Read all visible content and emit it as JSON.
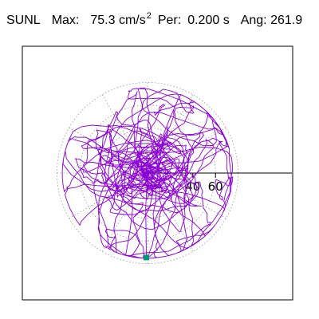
{
  "header": {
    "station": "SUNL",
    "max_label": "Max:",
    "max_value": "75.3",
    "max_unit": "cm/s",
    "max_unit_exp": "2",
    "period_label": "Per:",
    "period_value": "0.200",
    "period_unit": "s",
    "angle_label": "Ang:",
    "angle_value": "261.9"
  },
  "colors": {
    "trace": "#8a00d4",
    "marker": "#009977",
    "grid": "#999999",
    "axis": "#000000"
  },
  "chart_data": {
    "type": "line",
    "title": "SUNL  Max: 75.3 cm/s2  Per: 0.200 s  Ang: 261.9",
    "xlabel": "",
    "ylabel": "",
    "radial_ticks": [
      40,
      60
    ],
    "radial_rings": [
      20,
      40,
      60,
      80
    ],
    "grid": true,
    "grid_style": "dotted polar rings and spokes every 30 degrees",
    "max_amplitude": 75.3,
    "peak_angle_deg": 261.9,
    "series": [
      {
        "type": "orbit",
        "description_points": [
          [
            0,
            0
          ],
          [
            10,
            5
          ],
          [
            -8,
            12
          ],
          [
            20,
            -15
          ],
          [
            -30,
            20
          ],
          [
            45,
            10
          ],
          [
            -20,
            -35
          ],
          [
            15,
            40
          ],
          [
            -40,
            -10
          ],
          [
            35,
            -30
          ],
          [
            -10,
            50
          ],
          [
            25,
            25
          ],
          [
            -45,
            15
          ],
          [
            30,
            -45
          ],
          [
            -15,
            -60
          ],
          [
            5,
            70
          ],
          [
            -35,
            40
          ],
          [
            55,
            -20
          ],
          [
            -50,
            -25
          ],
          [
            40,
            35
          ],
          [
            -25,
            55
          ],
          [
            60,
            5
          ],
          [
            -55,
            0
          ],
          [
            20,
            -65
          ],
          [
            -5,
            -73
          ],
          [
            0,
            -75.3
          ]
        ]
      }
    ]
  }
}
